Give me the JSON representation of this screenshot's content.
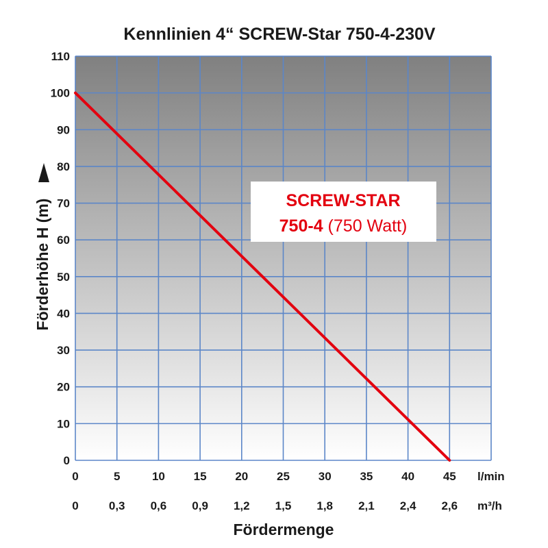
{
  "chart_data": {
    "type": "line",
    "title": "Kennlinien 4“ SCREW-Star 750-4-230V",
    "xlabel": "Fördermenge",
    "ylabel": "Förderhöhe H (m)",
    "x_unit_primary": "l/min",
    "x_unit_secondary": "m³/h",
    "xlim": [
      0,
      50
    ],
    "ylim": [
      0,
      110
    ],
    "x_ticks_primary": [
      "0",
      "5",
      "10",
      "15",
      "20",
      "25",
      "30",
      "35",
      "40",
      "45"
    ],
    "x_ticks_secondary": [
      "0",
      "0,3",
      "0,6",
      "0,9",
      "1,2",
      "1,5",
      "1,8",
      "2,1",
      "2,4",
      "2,6"
    ],
    "y_ticks": [
      "0",
      "10",
      "20",
      "30",
      "40",
      "50",
      "60",
      "70",
      "80",
      "90",
      "100",
      "110"
    ],
    "grid": true,
    "series": [
      {
        "name": "SCREW-STAR 750-4 (750 Watt)",
        "color": "#e3000f",
        "x": [
          0,
          45
        ],
        "y": [
          100,
          0
        ]
      }
    ],
    "annotation": {
      "line1": "SCREW-STAR",
      "line2_bold": "750-4",
      "line2_rest": " (750 Watt)"
    },
    "colors": {
      "grid": "#5b86c8",
      "line": "#e3000f",
      "bg_top": "#808080",
      "bg_bottom": "#ffffff",
      "text": "#1a1a1a"
    }
  }
}
